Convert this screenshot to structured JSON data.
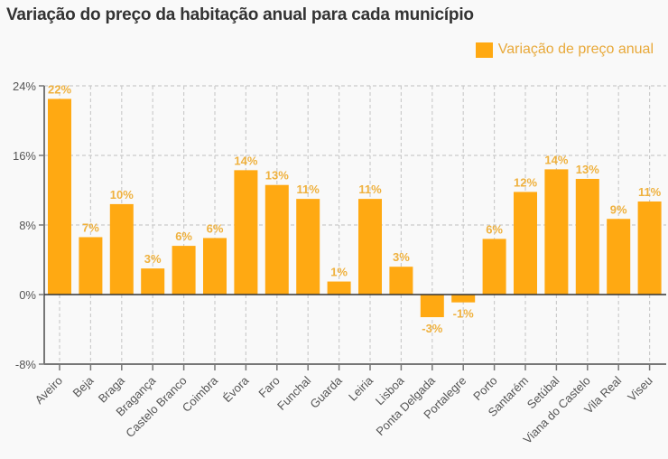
{
  "chart_data": {
    "type": "bar",
    "title": "Variação do preço da habitação anual para cada município",
    "xlabel": "",
    "ylabel": "",
    "ylim": [
      -8,
      24
    ],
    "yticks": [
      24,
      16,
      8,
      0,
      -8
    ],
    "ytick_labels": [
      "24%",
      "16%",
      "8%",
      "0%",
      "-8%"
    ],
    "grid": true,
    "legend_position": "top-right",
    "categories": [
      "Aveiro",
      "Beja",
      "Braga",
      "Bragança",
      "Castelo Branco",
      "Coimbra",
      "Évora",
      "Faro",
      "Funchal",
      "Guarda",
      "Leiria",
      "Lisboa",
      "Ponta Delgada",
      "Portalegre",
      "Porto",
      "Santarém",
      "Setúbal",
      "Viana do Castelo",
      "Vila Real",
      "Viseu"
    ],
    "series": [
      {
        "name": "Variação de preço anual",
        "color": "#ffa912",
        "values": [
          22.5,
          6.6,
          10.4,
          3.0,
          5.6,
          6.5,
          14.3,
          12.6,
          11.0,
          1.5,
          11.0,
          3.2,
          -2.6,
          -0.9,
          6.4,
          11.8,
          14.4,
          13.3,
          8.7,
          10.7
        ],
        "data_labels": [
          "22%",
          "7%",
          "10%",
          "3%",
          "6%",
          "6%",
          "14%",
          "13%",
          "11%",
          "1%",
          "11%",
          "3%",
          "-3%",
          "-1%",
          "6%",
          "12%",
          "14%",
          "13%",
          "9%",
          "11%"
        ]
      }
    ]
  },
  "colors": {
    "bar": "#ffa912",
    "data_label": "#efb13e",
    "legend_text": "#e8a93a",
    "axis": "#777777",
    "grid": "#cccccc",
    "zero_line": "#333333"
  }
}
